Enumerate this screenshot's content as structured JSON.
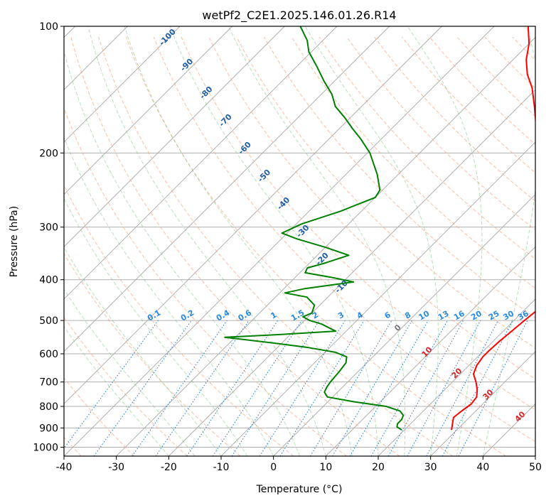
{
  "chart_data": {
    "type": "line",
    "title": "wetPf2_C2E1.2025.146.01.26.R14",
    "xlabel": "Temperature (°C)",
    "ylabel": "Pressure (hPa)",
    "xlim": [
      -40,
      50
    ],
    "ylim": [
      1050,
      100
    ],
    "log_y": true,
    "skew_degrees": 45,
    "grid": true,
    "xticks": [
      "-40",
      "-30",
      "-20",
      "-10",
      "0",
      "10",
      "20",
      "30",
      "40",
      "50"
    ],
    "yticks": [
      {
        "value": 100,
        "label": "100"
      },
      {
        "value": 200,
        "label": "200"
      },
      {
        "value": 300,
        "label": "300"
      },
      {
        "value": 400,
        "label": "400"
      },
      {
        "value": 500,
        "label": "500"
      },
      {
        "value": 600,
        "label": "600"
      },
      {
        "value": 700,
        "label": "700"
      },
      {
        "value": 800,
        "label": "800"
      },
      {
        "value": 900,
        "label": "900"
      },
      {
        "value": 1000,
        "label": "1000"
      }
    ],
    "series": [
      {
        "color": "#ff0000",
        "points": [
          [
            910,
            29.0
          ],
          [
            880,
            28.0
          ],
          [
            850,
            27.0
          ],
          [
            820,
            27.3
          ],
          [
            790,
            27.8
          ],
          [
            760,
            27.5
          ],
          [
            730,
            26.2
          ],
          [
            700,
            24.5
          ],
          [
            670,
            22.5
          ],
          [
            640,
            21.5
          ],
          [
            610,
            21.0
          ],
          [
            590,
            21.0
          ],
          [
            560,
            21.2
          ],
          [
            530,
            21.6
          ],
          [
            500,
            22.0
          ],
          [
            470,
            22.5
          ],
          [
            440,
            23.0
          ],
          [
            420,
            22.7
          ],
          [
            400,
            21.5
          ],
          [
            380,
            19.0
          ],
          [
            350,
            15.0
          ],
          [
            320,
            11.5
          ],
          [
            300,
            9.0
          ],
          [
            270,
            5.0
          ],
          [
            245,
            2.0
          ],
          [
            230,
            -1.0
          ],
          [
            210,
            -5.0
          ],
          [
            190,
            -9.0
          ],
          [
            170,
            -13.5
          ],
          [
            155,
            -17.0
          ],
          [
            140,
            -21.0
          ],
          [
            130,
            -24.5
          ],
          [
            120,
            -27.5
          ],
          [
            110,
            -30.0
          ],
          [
            100,
            -33.5
          ]
        ]
      },
      {
        "color": "#008000",
        "points": [
          [
            910,
            19.5
          ],
          [
            895,
            18.0
          ],
          [
            880,
            17.5
          ],
          [
            860,
            17.5
          ],
          [
            840,
            17.0
          ],
          [
            820,
            15.5
          ],
          [
            800,
            12.0
          ],
          [
            780,
            5.0
          ],
          [
            760,
            -1.0
          ],
          [
            740,
            -2.5
          ],
          [
            720,
            -3.0
          ],
          [
            700,
            -3.3
          ],
          [
            660,
            -3.6
          ],
          [
            630,
            -4.0
          ],
          [
            610,
            -5.0
          ],
          [
            595,
            -8.0
          ],
          [
            580,
            -14.0
          ],
          [
            565,
            -22.0
          ],
          [
            548,
            -32.0
          ],
          [
            540,
            -22.0
          ],
          [
            530,
            -12.0
          ],
          [
            520,
            -14.0
          ],
          [
            510,
            -16.0
          ],
          [
            500,
            -19.0
          ],
          [
            490,
            -21.0
          ],
          [
            480,
            -20.0
          ],
          [
            460,
            -21.0
          ],
          [
            440,
            -24.0
          ],
          [
            430,
            -29.0
          ],
          [
            420,
            -26.0
          ],
          [
            405,
            -18.0
          ],
          [
            395,
            -23.0
          ],
          [
            385,
            -29.0
          ],
          [
            375,
            -29.5
          ],
          [
            365,
            -27.0
          ],
          [
            350,
            -24.0
          ],
          [
            335,
            -30.0
          ],
          [
            320,
            -37.0
          ],
          [
            310,
            -41.0
          ],
          [
            295,
            -39.0
          ],
          [
            275,
            -34.0
          ],
          [
            255,
            -30.0
          ],
          [
            245,
            -30.5
          ],
          [
            225,
            -34.0
          ],
          [
            200,
            -39.5
          ],
          [
            185,
            -44.0
          ],
          [
            175,
            -47.5
          ],
          [
            165,
            -51.0
          ],
          [
            155,
            -55.0
          ],
          [
            145,
            -58.0
          ],
          [
            135,
            -62.0
          ],
          [
            125,
            -66.0
          ],
          [
            115,
            -70.5
          ],
          [
            108,
            -73.0
          ],
          [
            100,
            -77.0
          ]
        ]
      }
    ],
    "dry_adiabats": [
      "-100",
      "-90",
      "-80",
      "-70",
      "-60",
      "-50",
      "-40",
      "-30",
      "-20",
      "-10"
    ],
    "mixing_ratios": [
      "0.1",
      "0.2",
      "0.4",
      "0.6",
      "1",
      "1.5",
      "2",
      "3",
      "4",
      "6",
      "8",
      "10",
      "13",
      "16",
      "20",
      "25",
      "30",
      "36"
    ],
    "moist_adiabats": [
      "0",
      "10",
      "20",
      "30",
      "40"
    ]
  }
}
